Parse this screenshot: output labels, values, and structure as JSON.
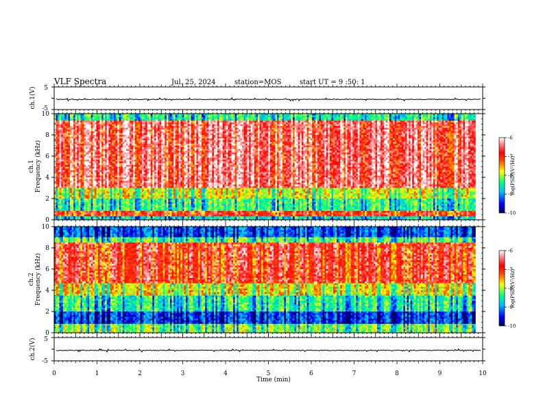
{
  "header": {
    "title": "VLF Spectra",
    "date": "Jul. 25, 2024",
    "station": "station=MOS",
    "start": "start UT =  9 :50: 1"
  },
  "chart_data": [
    {
      "type": "line",
      "name": "ch1-waveform",
      "ylabel": "ch.1(V)",
      "ylim": [
        -5,
        5
      ],
      "yticks": [
        "5",
        "-5"
      ],
      "xlim": [
        0,
        10
      ],
      "series": [
        {
          "values_level": -0.5
        }
      ]
    },
    {
      "type": "heatmap",
      "name": "ch1-spectrogram",
      "ylabel": "ch.1\nFrequency (kHz)",
      "ylabel_line1": "ch.1",
      "ylabel_line2": "Frequency (kHz)",
      "ylim": [
        0,
        10
      ],
      "yticks": [
        "0",
        "2",
        "4",
        "6",
        "8",
        "10"
      ],
      "xlim": [
        0,
        10
      ],
      "data_extent_min": 9.83,
      "colorbar": {
        "label": "log(PSD)(V²/Hz)",
        "range": [
          -10,
          -6
        ],
        "ticks": [
          "-6",
          "-7",
          "-8",
          "-9",
          "-10"
        ]
      },
      "bands_description": "intense -7 to -6 from 3 to 9 kHz; weaker 0 to 3 kHz"
    },
    {
      "type": "heatmap",
      "name": "ch2-spectrogram",
      "ylabel_line1": "ch.2",
      "ylabel_line2": "Frequency (kHz)",
      "ylim": [
        0,
        10
      ],
      "yticks": [
        "0",
        "2",
        "4",
        "6",
        "8",
        "10"
      ],
      "xlim": [
        0,
        10
      ],
      "colorbar": {
        "label": "log(PSD)(V²/Hz)",
        "range": [
          -10,
          -6
        ],
        "ticks": [
          "-6",
          "-7",
          "-8",
          "-9",
          "-10"
        ]
      }
    },
    {
      "type": "line",
      "name": "ch2-waveform",
      "ylabel": "ch.2(V)",
      "ylim": [
        -5,
        5
      ],
      "yticks": [
        "5",
        "-5"
      ],
      "xlim": [
        0,
        10
      ],
      "series": [
        {
          "values_level": -0.5
        }
      ]
    }
  ],
  "xaxis": {
    "label": "Time (min)",
    "ticks": [
      "0",
      "1",
      "2",
      "3",
      "4",
      "5",
      "6",
      "7",
      "8",
      "9",
      "10"
    ]
  },
  "colors": {
    "spectrum": [
      "#00007a",
      "#0000ff",
      "#0080ff",
      "#00ffff",
      "#00ff40",
      "#ffff00",
      "#ff8000",
      "#ff0000",
      "#ffc0c0",
      "#ffffff"
    ]
  }
}
